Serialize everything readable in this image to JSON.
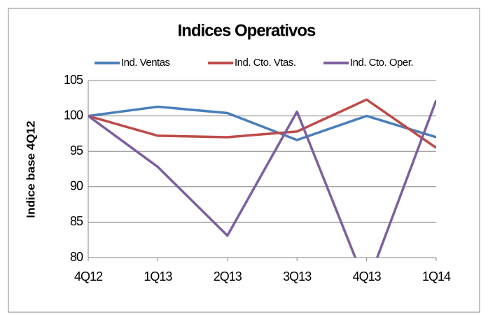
{
  "chart_data": {
    "type": "line",
    "title": "Indices Operativos",
    "y_label": "Indice base 4Q12",
    "categories": [
      "4Q12",
      "1Q13",
      "2Q13",
      "3Q13",
      "4Q13",
      "1Q14"
    ],
    "series": [
      {
        "name": "Ind. Ventas",
        "color": "#4a7ebb",
        "values": [
          100,
          101.3,
          100.4,
          96.6,
          100,
          97
        ]
      },
      {
        "name": "Ind. Cto. Vtas.",
        "color": "#be4b48",
        "values": [
          100,
          97.2,
          97.0,
          97.8,
          102.3,
          95.5
        ]
      },
      {
        "name": "Ind. Cto. Oper.",
        "color": "#7d5fa0",
        "values": [
          100,
          92.8,
          83.1,
          100.6,
          76,
          102.2
        ]
      }
    ],
    "ylim": [
      80,
      105
    ],
    "yticks": [
      80,
      85,
      90,
      95,
      100,
      105
    ],
    "grid": true,
    "legend": "top"
  }
}
